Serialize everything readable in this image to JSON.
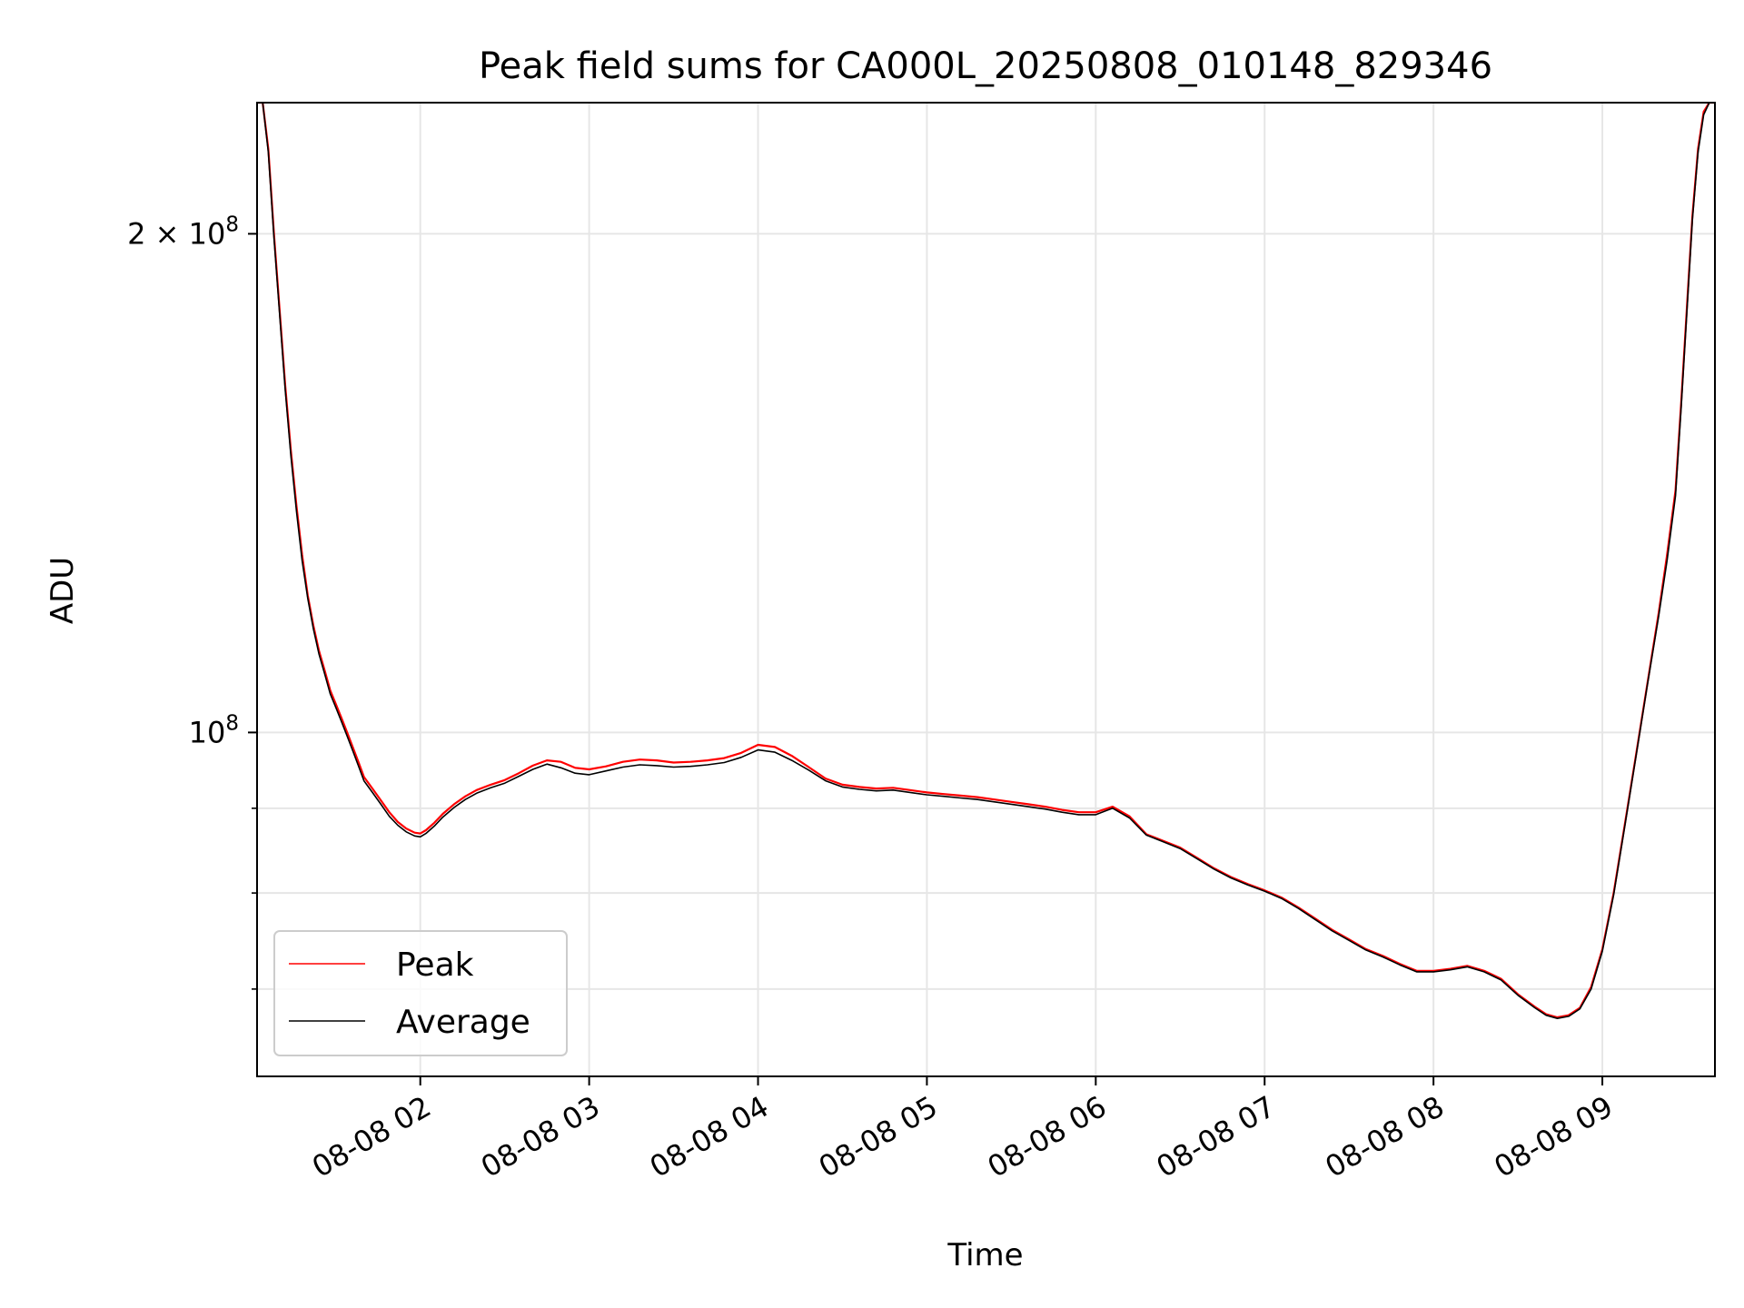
{
  "chart_data": {
    "type": "line",
    "title": "Peak field sums for CA000L_20250808_010148_829346",
    "xlabel": "Time",
    "ylabel": "ADU",
    "y_scale": "log",
    "grid": true,
    "legend_position": "lower-left",
    "xlim": [
      "2025-08-08 01:02",
      "2025-08-08 09:40"
    ],
    "ylim": [
      62000000,
      240000000
    ],
    "x_ticks": [
      "08-08 02",
      "08-08 03",
      "08-08 04",
      "08-08 05",
      "08-08 06",
      "08-08 07",
      "08-08 08",
      "08-08 09"
    ],
    "y_ticks": [
      {
        "value": 100000000,
        "base": "10",
        "exp": "8",
        "coef": ""
      },
      {
        "value": 200000000,
        "base": "10",
        "exp": "8",
        "coef": "2 × "
      }
    ],
    "y_minor_ticks": [
      70000000,
      80000000,
      90000000
    ],
    "series": [
      {
        "name": "Peak",
        "color": "#ff0000",
        "x": [
          "2025-08-08 01:02",
          "2025-08-08 01:04",
          "2025-08-08 01:06",
          "2025-08-08 01:08",
          "2025-08-08 01:10",
          "2025-08-08 01:12",
          "2025-08-08 01:14",
          "2025-08-08 01:16",
          "2025-08-08 01:18",
          "2025-08-08 01:20",
          "2025-08-08 01:22",
          "2025-08-08 01:24",
          "2025-08-08 01:26",
          "2025-08-08 01:28",
          "2025-08-08 01:30",
          "2025-08-08 01:32",
          "2025-08-08 01:34",
          "2025-08-08 01:36",
          "2025-08-08 01:38",
          "2025-08-08 01:40",
          "2025-08-08 01:43",
          "2025-08-08 01:46",
          "2025-08-08 01:49",
          "2025-08-08 01:52",
          "2025-08-08 01:55",
          "2025-08-08 01:58",
          "2025-08-08 02:00",
          "2025-08-08 02:02",
          "2025-08-08 02:05",
          "2025-08-08 02:08",
          "2025-08-08 02:12",
          "2025-08-08 02:16",
          "2025-08-08 02:20",
          "2025-08-08 02:25",
          "2025-08-08 02:30",
          "2025-08-08 02:35",
          "2025-08-08 02:40",
          "2025-08-08 02:45",
          "2025-08-08 02:50",
          "2025-08-08 02:55",
          "2025-08-08 03:00",
          "2025-08-08 03:06",
          "2025-08-08 03:12",
          "2025-08-08 03:18",
          "2025-08-08 03:24",
          "2025-08-08 03:30",
          "2025-08-08 03:36",
          "2025-08-08 03:42",
          "2025-08-08 03:48",
          "2025-08-08 03:54",
          "2025-08-08 04:00",
          "2025-08-08 04:06",
          "2025-08-08 04:12",
          "2025-08-08 04:18",
          "2025-08-08 04:24",
          "2025-08-08 04:30",
          "2025-08-08 04:36",
          "2025-08-08 04:42",
          "2025-08-08 04:48",
          "2025-08-08 04:54",
          "2025-08-08 05:00",
          "2025-08-08 05:06",
          "2025-08-08 05:12",
          "2025-08-08 05:18",
          "2025-08-08 05:24",
          "2025-08-08 05:30",
          "2025-08-08 05:36",
          "2025-08-08 05:42",
          "2025-08-08 05:48",
          "2025-08-08 05:54",
          "2025-08-08 06:00",
          "2025-08-08 06:06",
          "2025-08-08 06:12",
          "2025-08-08 06:18",
          "2025-08-08 06:24",
          "2025-08-08 06:30",
          "2025-08-08 06:36",
          "2025-08-08 06:42",
          "2025-08-08 06:48",
          "2025-08-08 06:54",
          "2025-08-08 07:00",
          "2025-08-08 07:06",
          "2025-08-08 07:12",
          "2025-08-08 07:18",
          "2025-08-08 07:24",
          "2025-08-08 07:30",
          "2025-08-08 07:36",
          "2025-08-08 07:42",
          "2025-08-08 07:48",
          "2025-08-08 07:54",
          "2025-08-08 08:00",
          "2025-08-08 08:06",
          "2025-08-08 08:12",
          "2025-08-08 08:18",
          "2025-08-08 08:24",
          "2025-08-08 08:30",
          "2025-08-08 08:36",
          "2025-08-08 08:40",
          "2025-08-08 08:44",
          "2025-08-08 08:48",
          "2025-08-08 08:52",
          "2025-08-08 08:56",
          "2025-08-08 09:00",
          "2025-08-08 09:04",
          "2025-08-08 09:08",
          "2025-08-08 09:12",
          "2025-08-08 09:16",
          "2025-08-08 09:20",
          "2025-08-08 09:23",
          "2025-08-08 09:26",
          "2025-08-08 09:28",
          "2025-08-08 09:30",
          "2025-08-08 09:32",
          "2025-08-08 09:34",
          "2025-08-08 09:36",
          "2025-08-08 09:38",
          "2025-08-08 09:40"
        ],
        "values": [
          240000000,
          240000000,
          225000000,
          200000000,
          180000000,
          162000000,
          148000000,
          137000000,
          128000000,
          121000000,
          116000000,
          112000000,
          109000000,
          106000000,
          104000000,
          102000000,
          100000000,
          98000000,
          96000000,
          94000000,
          92500000,
          91000000,
          89500000,
          88300000,
          87500000,
          87000000,
          86900000,
          87300000,
          88200000,
          89300000,
          90500000,
          91500000,
          92300000,
          93000000,
          93600000,
          94500000,
          95500000,
          96200000,
          96000000,
          95200000,
          95000000,
          95400000,
          96000000,
          96300000,
          96200000,
          95900000,
          96000000,
          96200000,
          96500000,
          97200000,
          98300000,
          98000000,
          96800000,
          95300000,
          93800000,
          93000000,
          92700000,
          92500000,
          92600000,
          92300000,
          92000000,
          91800000,
          91600000,
          91400000,
          91100000,
          90800000,
          90500000,
          90200000,
          89800000,
          89500000,
          89500000,
          90200000,
          89000000,
          86800000,
          86000000,
          85200000,
          84000000,
          82800000,
          81800000,
          81000000,
          80300000,
          79500000,
          78400000,
          77200000,
          76000000,
          75000000,
          74000000,
          73300000,
          72500000,
          71800000,
          71800000,
          72000000,
          72300000,
          71800000,
          71000000,
          69500000,
          68300000,
          67600000,
          67300000,
          67500000,
          68200000,
          70200000,
          74000000,
          80000000,
          88000000,
          97000000,
          107000000,
          118000000,
          128000000,
          140000000,
          158000000,
          180000000,
          205000000,
          225000000,
          237000000,
          240000000,
          240000000
        ]
      },
      {
        "name": "Average",
        "color": "#000000",
        "x": [
          "2025-08-08 01:02",
          "2025-08-08 01:04",
          "2025-08-08 01:06",
          "2025-08-08 01:08",
          "2025-08-08 01:10",
          "2025-08-08 01:12",
          "2025-08-08 01:14",
          "2025-08-08 01:16",
          "2025-08-08 01:18",
          "2025-08-08 01:20",
          "2025-08-08 01:22",
          "2025-08-08 01:24",
          "2025-08-08 01:26",
          "2025-08-08 01:28",
          "2025-08-08 01:30",
          "2025-08-08 01:32",
          "2025-08-08 01:34",
          "2025-08-08 01:36",
          "2025-08-08 01:38",
          "2025-08-08 01:40",
          "2025-08-08 01:43",
          "2025-08-08 01:46",
          "2025-08-08 01:49",
          "2025-08-08 01:52",
          "2025-08-08 01:55",
          "2025-08-08 01:58",
          "2025-08-08 02:00",
          "2025-08-08 02:02",
          "2025-08-08 02:05",
          "2025-08-08 02:08",
          "2025-08-08 02:12",
          "2025-08-08 02:16",
          "2025-08-08 02:20",
          "2025-08-08 02:25",
          "2025-08-08 02:30",
          "2025-08-08 02:35",
          "2025-08-08 02:40",
          "2025-08-08 02:45",
          "2025-08-08 02:50",
          "2025-08-08 02:55",
          "2025-08-08 03:00",
          "2025-08-08 03:06",
          "2025-08-08 03:12",
          "2025-08-08 03:18",
          "2025-08-08 03:24",
          "2025-08-08 03:30",
          "2025-08-08 03:36",
          "2025-08-08 03:42",
          "2025-08-08 03:48",
          "2025-08-08 03:54",
          "2025-08-08 04:00",
          "2025-08-08 04:06",
          "2025-08-08 04:12",
          "2025-08-08 04:18",
          "2025-08-08 04:24",
          "2025-08-08 04:30",
          "2025-08-08 04:36",
          "2025-08-08 04:42",
          "2025-08-08 04:48",
          "2025-08-08 04:54",
          "2025-08-08 05:00",
          "2025-08-08 05:06",
          "2025-08-08 05:12",
          "2025-08-08 05:18",
          "2025-08-08 05:24",
          "2025-08-08 05:30",
          "2025-08-08 05:36",
          "2025-08-08 05:42",
          "2025-08-08 05:48",
          "2025-08-08 05:54",
          "2025-08-08 06:00",
          "2025-08-08 06:06",
          "2025-08-08 06:12",
          "2025-08-08 06:18",
          "2025-08-08 06:24",
          "2025-08-08 06:30",
          "2025-08-08 06:36",
          "2025-08-08 06:42",
          "2025-08-08 06:48",
          "2025-08-08 06:54",
          "2025-08-08 07:00",
          "2025-08-08 07:06",
          "2025-08-08 07:12",
          "2025-08-08 07:18",
          "2025-08-08 07:24",
          "2025-08-08 07:30",
          "2025-08-08 07:36",
          "2025-08-08 07:42",
          "2025-08-08 07:48",
          "2025-08-08 07:54",
          "2025-08-08 08:00",
          "2025-08-08 08:06",
          "2025-08-08 08:12",
          "2025-08-08 08:18",
          "2025-08-08 08:24",
          "2025-08-08 08:30",
          "2025-08-08 08:36",
          "2025-08-08 08:40",
          "2025-08-08 08:44",
          "2025-08-08 08:48",
          "2025-08-08 08:52",
          "2025-08-08 08:56",
          "2025-08-08 09:00",
          "2025-08-08 09:04",
          "2025-08-08 09:08",
          "2025-08-08 09:12",
          "2025-08-08 09:16",
          "2025-08-08 09:20",
          "2025-08-08 09:23",
          "2025-08-08 09:26",
          "2025-08-08 09:28",
          "2025-08-08 09:30",
          "2025-08-08 09:32",
          "2025-08-08 09:34",
          "2025-08-08 09:36",
          "2025-08-08 09:38",
          "2025-08-08 09:40"
        ],
        "values": [
          240000000,
          240000000,
          224000000,
          199000000,
          179000000,
          161000000,
          147000000,
          136000000,
          127000000,
          120500000,
          115500000,
          111500000,
          108500000,
          105500000,
          103500000,
          101500000,
          99500000,
          97500000,
          95500000,
          93500000,
          92000000,
          90500000,
          89000000,
          87900000,
          87100000,
          86600000,
          86500000,
          86900000,
          87800000,
          88900000,
          90100000,
          91100000,
          91900000,
          92600000,
          93200000,
          94100000,
          95000000,
          95700000,
          95200000,
          94500000,
          94300000,
          94800000,
          95300000,
          95600000,
          95500000,
          95300000,
          95400000,
          95600000,
          95900000,
          96600000,
          97600000,
          97300000,
          96200000,
          94900000,
          93500000,
          92700000,
          92400000,
          92200000,
          92300000,
          92000000,
          91700000,
          91500000,
          91300000,
          91100000,
          90800000,
          90500000,
          90200000,
          89900000,
          89500000,
          89200000,
          89200000,
          90000000,
          88800000,
          86700000,
          85900000,
          85100000,
          83900000,
          82700000,
          81700000,
          80900000,
          80200000,
          79400000,
          78300000,
          77100000,
          75900000,
          74900000,
          73900000,
          73200000,
          72400000,
          71700000,
          71700000,
          71900000,
          72200000,
          71700000,
          70900000,
          69400000,
          68200000,
          67500000,
          67200000,
          67400000,
          68100000,
          70000000,
          73800000,
          79800000,
          87800000,
          96800000,
          106800000,
          117500000,
          127000000,
          139000000,
          157000000,
          179000000,
          204000000,
          224000000,
          236000000,
          240000000,
          240000000
        ]
      }
    ]
  }
}
